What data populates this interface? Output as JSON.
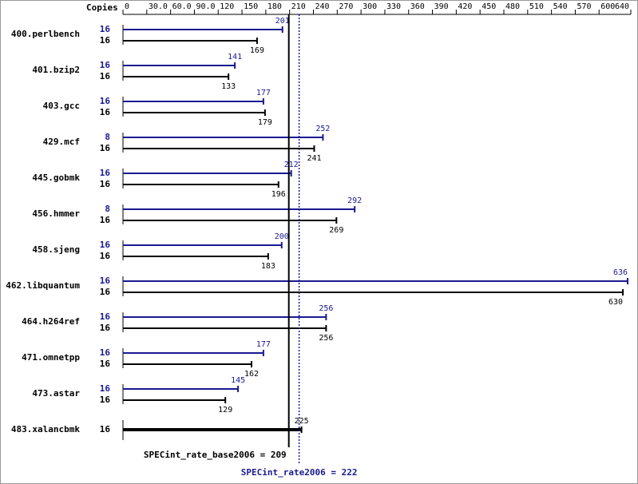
{
  "chart_data": {
    "type": "bar",
    "orientation": "horizontal",
    "copies_label": "Copies",
    "categories": [
      "400.perlbench",
      "401.bzip2",
      "403.gcc",
      "429.mcf",
      "445.gobmk",
      "456.hmmer",
      "458.sjeng",
      "462.libquantum",
      "464.h264ref",
      "471.omnetpp",
      "473.astar",
      "483.xalancbmk"
    ],
    "series": [
      {
        "color": "#191991",
        "values": [
          201,
          141,
          177,
          252,
          212,
          292,
          200,
          636,
          256,
          177,
          145,
          null
        ],
        "copies": [
          16,
          16,
          16,
          8,
          16,
          8,
          16,
          16,
          16,
          16,
          16,
          null
        ]
      },
      {
        "color": "#000000",
        "values": [
          169,
          133,
          179,
          241,
          196,
          269,
          183,
          630,
          256,
          162,
          129,
          225
        ],
        "copies": [
          16,
          16,
          16,
          16,
          16,
          16,
          16,
          16,
          16,
          16,
          16,
          16
        ]
      }
    ],
    "xlim": [
      0,
      640
    ],
    "xticks": [
      0,
      {
        "value": 30,
        "label": "30.0"
      },
      {
        "value": 60,
        "label": "60.0"
      },
      {
        "value": 90,
        "label": "90.0"
      },
      120,
      150,
      180,
      210,
      240,
      270,
      300,
      330,
      360,
      390,
      420,
      450,
      480,
      510,
      540,
      570,
      600,
      640
    ],
    "reference_lines": [
      {
        "value": 209,
        "label": "SPECint_rate_base2006 = 209",
        "color": "#000000",
        "style": "solid"
      },
      {
        "value": 222,
        "label": "SPECint_rate2006 = 222",
        "color": "#191991",
        "style": "dotted"
      }
    ]
  }
}
